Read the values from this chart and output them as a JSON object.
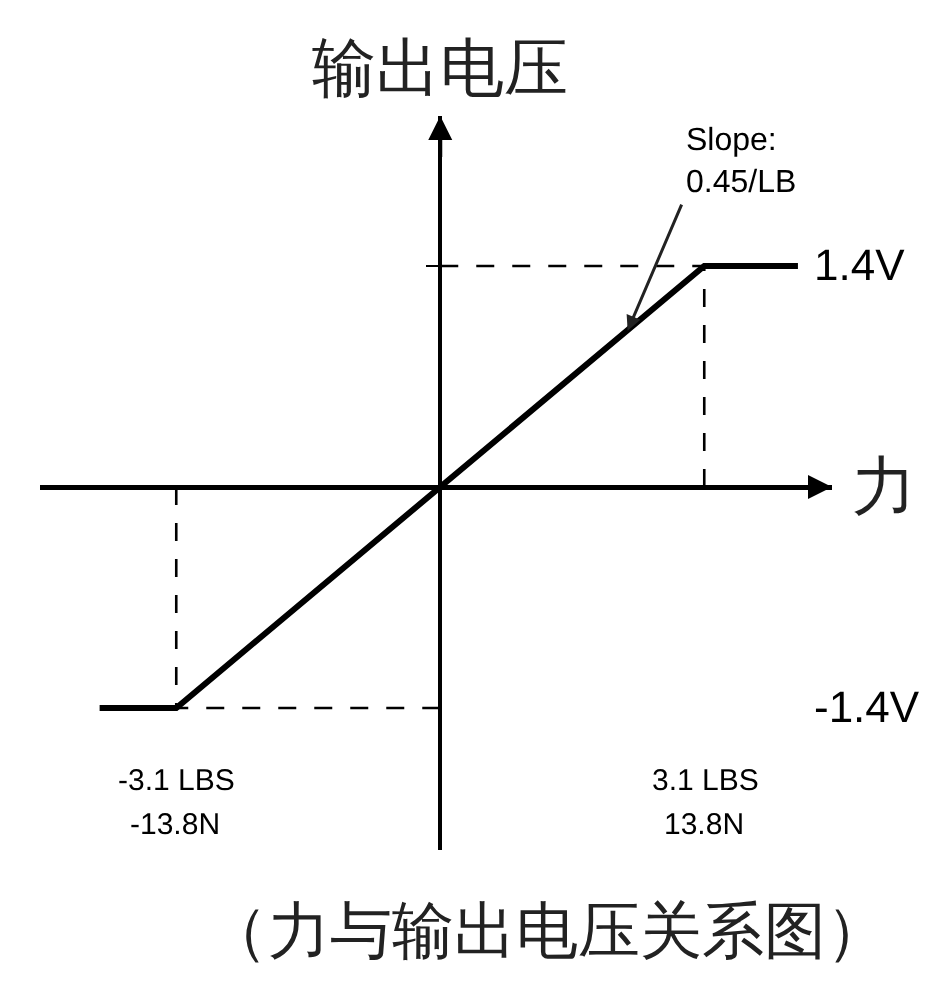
{
  "chart_data": {
    "type": "line",
    "xlabel": "力",
    "ylabel": "输出电压",
    "annotations": [
      {
        "text": "Slope:\n0.45/LB",
        "x": 2.2,
        "y": 0.99
      },
      "（力与输出电压关系图）"
    ],
    "x": [
      -4.0,
      -3.1,
      3.1,
      4.2
    ],
    "series": [
      {
        "color": "#000000",
        "values": [
          -1.4,
          -1.4,
          1.4,
          1.4
        ]
      }
    ],
    "xlim": [
      -4.7,
      4.6
    ],
    "ylim": [
      -2.3,
      2.35
    ],
    "xticks": [
      {
        "value": -3.1,
        "label": "-3.1 LBS"
      },
      {
        "value": 3.1,
        "label": "3.1 LBS"
      }
    ],
    "x2lim": [
      -20.9,
      20.5
    ],
    "x2ticks": [
      {
        "value": -13.8,
        "label": "-13.8N"
      },
      {
        "value": 13.8,
        "label": "13.8N"
      }
    ],
    "yticks": [
      {
        "value": -1.4,
        "label": "-1.4V"
      },
      {
        "value": 1.4,
        "label": "1.4V"
      }
    ],
    "ref_lines": [
      {
        "axis": "x",
        "value": -3.1,
        "color": "#000000",
        "line_style": "dashed"
      },
      {
        "axis": "x",
        "value": 3.1,
        "color": "#000000",
        "line_style": "dashed"
      },
      {
        "axis": "y",
        "value": 1.4,
        "color": "#000000",
        "line_style": "dashed"
      },
      {
        "axis": "y",
        "value": -1.4,
        "color": "#000000",
        "line_style": "dashed"
      }
    ],
    "marker": "none",
    "line_style": "solid"
  }
}
